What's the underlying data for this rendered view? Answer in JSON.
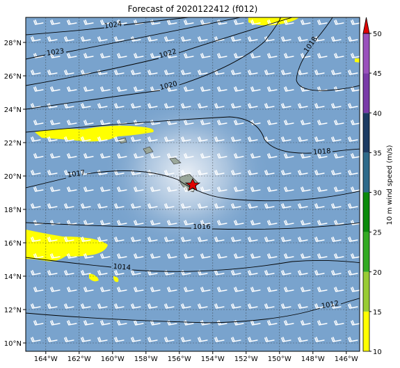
{
  "title": "Forecast of 2020122412 (f012)",
  "map": {
    "lon_extent": [
      -165.2,
      -145.2
    ],
    "lat_extent": [
      9.5,
      29.5
    ],
    "lon_ticks": [
      {
        "value": -164,
        "label": "164°W"
      },
      {
        "value": -162,
        "label": "162°W"
      },
      {
        "value": -160,
        "label": "160°W"
      },
      {
        "value": -158,
        "label": "158°W"
      },
      {
        "value": -156,
        "label": "156°W"
      },
      {
        "value": -154,
        "label": "154°W"
      },
      {
        "value": -152,
        "label": "152°W"
      },
      {
        "value": -150,
        "label": "150°W"
      },
      {
        "value": -148,
        "label": "148°W"
      },
      {
        "value": -146,
        "label": "146°W"
      }
    ],
    "lat_ticks": [
      {
        "value": 10,
        "label": "10°N"
      },
      {
        "value": 12,
        "label": "12°N"
      },
      {
        "value": 14,
        "label": "14°N"
      },
      {
        "value": 16,
        "label": "16°N"
      },
      {
        "value": 18,
        "label": "18°N"
      },
      {
        "value": 20,
        "label": "20°N"
      },
      {
        "value": 22,
        "label": "22°N"
      },
      {
        "value": 24,
        "label": "24°N"
      },
      {
        "value": 26,
        "label": "26°N"
      },
      {
        "value": 28,
        "label": "28°N"
      }
    ]
  },
  "isobars": [
    {
      "level": 1024
    },
    {
      "level": 1023
    },
    {
      "level": 1022
    },
    {
      "level": 1020
    },
    {
      "level": 1018
    },
    {
      "level": 1018
    },
    {
      "level": 1017
    },
    {
      "level": 1016
    },
    {
      "level": 1014
    },
    {
      "level": 1012
    }
  ],
  "colorbar": {
    "label": "10 m wind speed (m/s)",
    "lim": [
      10,
      50
    ],
    "ticks": [
      10,
      15,
      20,
      25,
      30,
      35,
      40,
      45,
      50
    ],
    "bounds": [
      10,
      15,
      20,
      25,
      30,
      35,
      40,
      45,
      50
    ],
    "colors": [
      "#ffff00",
      "#99cc33",
      "#33aa22",
      "#0a8a0a",
      "#2e6a8a",
      "#1c3a62",
      "#7a3aa8",
      "#9a50bc"
    ],
    "extend_color": "#e00000"
  }
}
